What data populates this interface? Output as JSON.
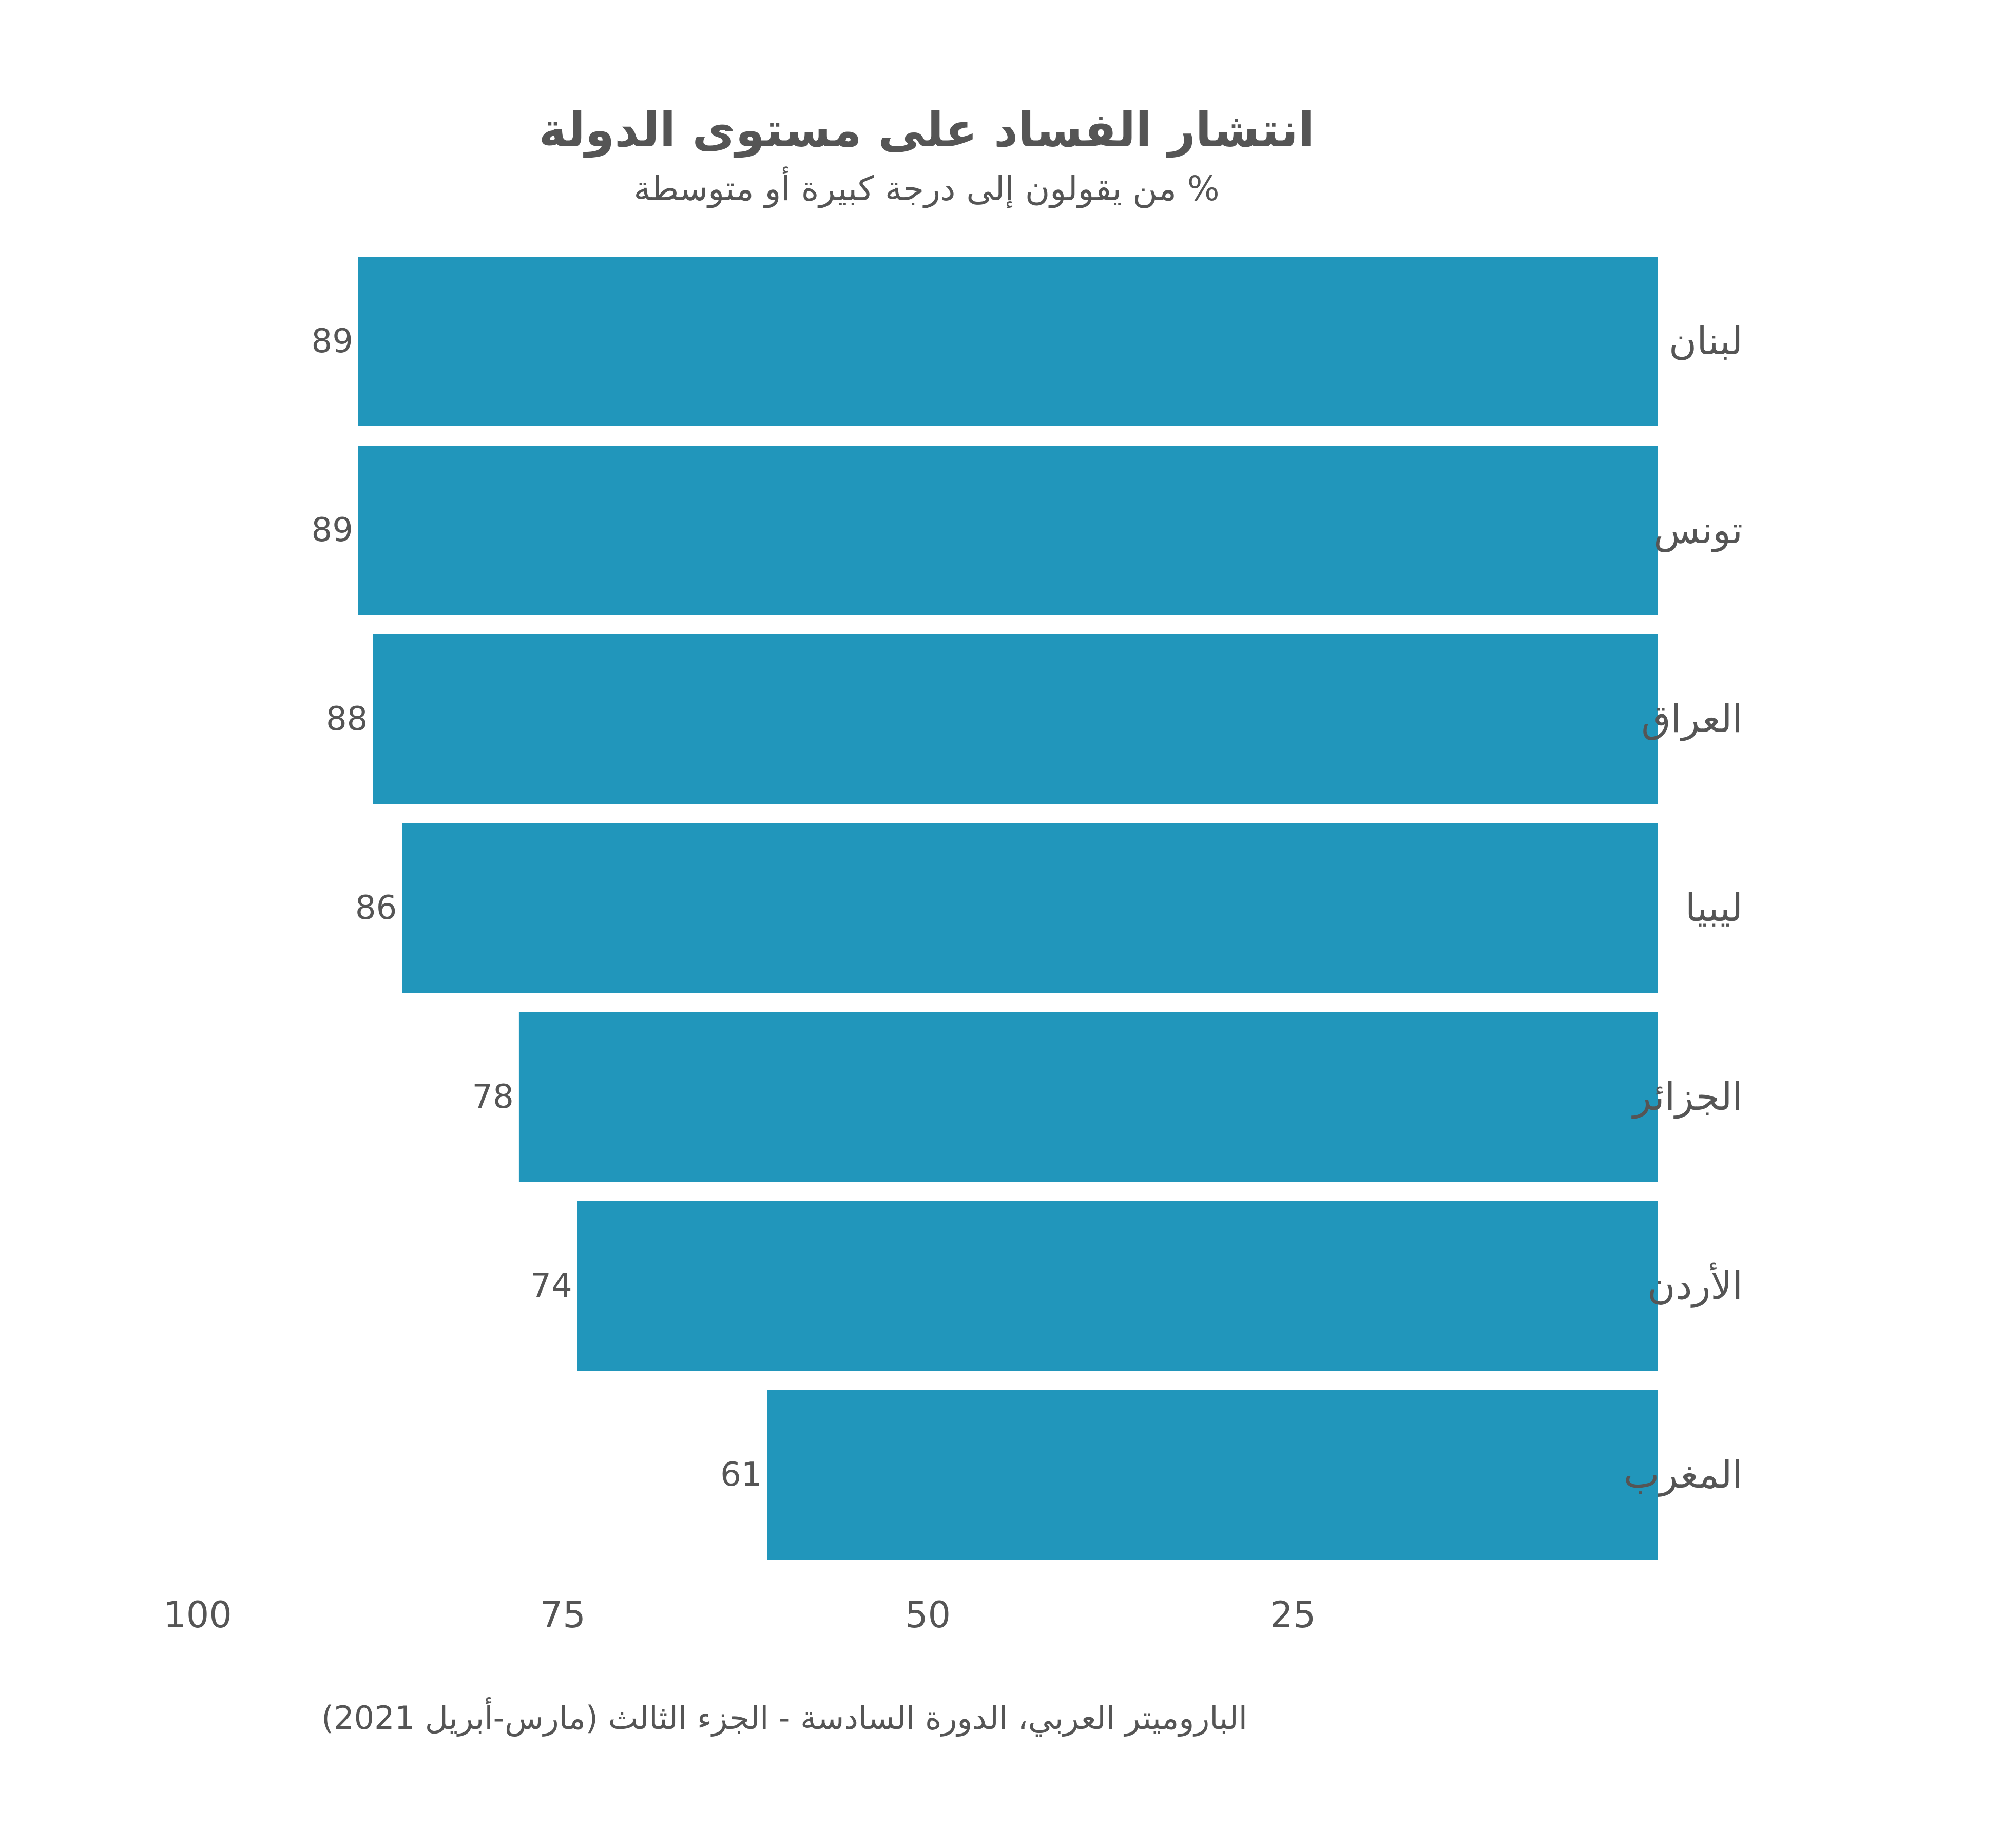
{
  "chart_data": {
    "type": "bar",
    "orientation": "horizontal",
    "x_axis_reversed": true,
    "title": "انتشار الفساد على مستوى الدولة",
    "subtitle": "% من يقولون إلى درجة كبيرة أو متوسطة",
    "categories": [
      "لبنان",
      "تونس",
      "العراق",
      "ليبيا",
      "الجزائر",
      "الأردن",
      "المغرب"
    ],
    "values": [
      89,
      89,
      88,
      86,
      78,
      74,
      61
    ],
    "xlim": [
      0,
      100
    ],
    "x_ticks": [
      100,
      75,
      50,
      25
    ],
    "data_labels": true,
    "grid": false,
    "bar_color": "#2196bb",
    "source": "الباروميتر العربي، الدورة السادسة - الجزء الثالث (مارس-أبريل 2021)"
  }
}
